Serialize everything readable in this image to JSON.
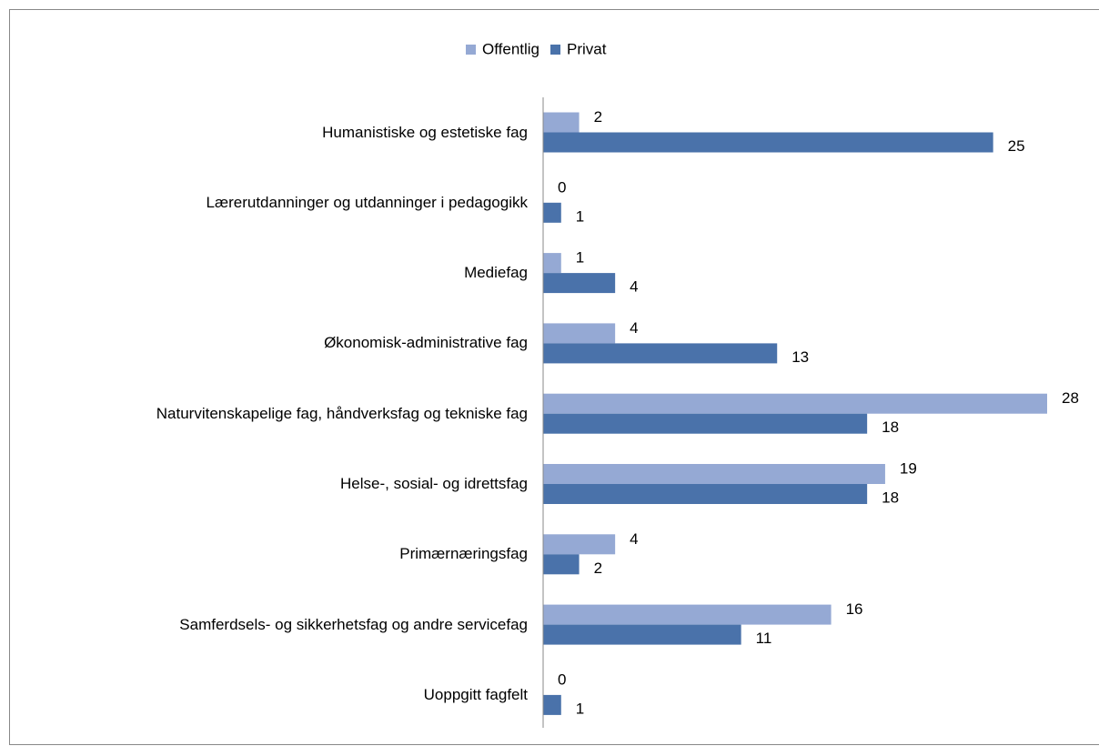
{
  "chart_data": {
    "type": "bar",
    "orientation": "horizontal",
    "categories": [
      "Humanistiske og estetiske fag",
      "Lærerutdanninger og utdanninger i pedagogikk",
      "Mediefag",
      "Økonomisk-administrative fag",
      "Naturvitenskapelige fag, håndverksfag og tekniske fag",
      "Helse-, sosial- og idrettsfag",
      "Primærnæringsfag",
      "Samferdsels- og sikkerhetsfag og andre servicefag",
      "Uoppgitt fagfelt"
    ],
    "series": [
      {
        "name": "Offentlig",
        "color": "#95a9d4",
        "values": [
          2,
          0,
          1,
          4,
          28,
          19,
          4,
          16,
          0
        ]
      },
      {
        "name": "Privat",
        "color": "#4a72aa",
        "values": [
          25,
          1,
          4,
          13,
          18,
          18,
          2,
          11,
          1
        ]
      }
    ],
    "legend": "top"
  }
}
